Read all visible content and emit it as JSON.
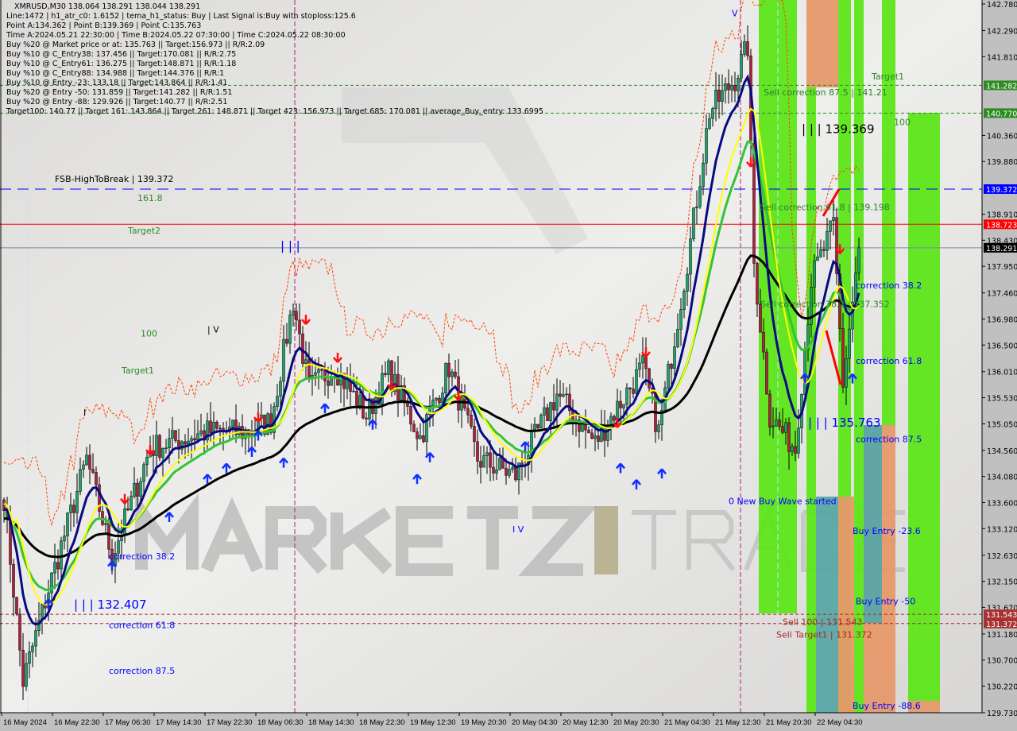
{
  "header": {
    "title": "XMRUSD,M30  138.064 138.291 138.044 138.291",
    "lines": [
      "Line:1472 | h1_atr_c0: 1.6152 | tema_h1_status: Buy | Last Signal is:Buy with stoploss:125.6",
      "Point A:134.362 | Point B:139.369 | Point C:135.763",
      "Time A:2024.05.21 22:30:00 | Time B:2024.05.22 07:30:00 | Time C:2024.05.22 08:30:00",
      "Buy %20 @ Market price or at: 135.763 || Target:156.973 || R/R:2.09",
      "Buy %10 @ C_Entry38: 137.456 || Target:170.081 || R/R:2.75",
      "Buy %10 @ C_Entry61: 136.275 || Target:148.871 || R/R:1.18",
      "Buy %10 @ C_Entry88: 134.988 || Target:144.376 || R/R:1",
      "Buy %10 @ Entry -23: 133.18 || Target:143.864 || R/R:1.41",
      "Buy %20 @ Entry -50: 131.859 || Target:141.282 || R/R:1.51",
      "Buy %20 @ Entry -88: 129.926 || Target:140.77 || R/R:2.51",
      "Target100: 140.77 || Target 161: 143.864 || Target 261: 148.871 || Target 423: 156.973 || Target 685: 170.081 || average_Buy_entry: 133.6995"
    ]
  },
  "watermark": "MARKETZ TRADE",
  "chart_data": {
    "type": "candlestick",
    "symbol": "XMRUSD",
    "timeframe": "M30",
    "ylim": [
      129.73,
      142.78
    ],
    "y_ticks": [
      "142.780",
      "142.290",
      "141.810",
      "140.360",
      "139.880",
      "138.910",
      "138.430",
      "137.950",
      "137.460",
      "136.980",
      "136.500",
      "136.010",
      "135.530",
      "135.050",
      "134.560",
      "134.080",
      "133.600",
      "133.120",
      "132.630",
      "132.150",
      "131.670",
      "131.180",
      "130.700",
      "130.220",
      "129.730"
    ],
    "x_ticks": [
      "16 May 2024",
      "16 May 22:30",
      "17 May 06:30",
      "17 May 14:30",
      "17 May 22:30",
      "18 May 06:30",
      "18 May 14:30",
      "18 May 22:30",
      "19 May 12:30",
      "19 May 20:30",
      "20 May 04:30",
      "20 May 12:30",
      "20 May 20:30",
      "21 May 04:30",
      "21 May 12:30",
      "21 May 20:30",
      "22 May 04:30"
    ],
    "close_path": [
      [
        0,
        133.7
      ],
      [
        6,
        130.3
      ],
      [
        14,
        132.0
      ],
      [
        26,
        134.4
      ],
      [
        34,
        132.6
      ],
      [
        46,
        134.6
      ],
      [
        64,
        134.9
      ],
      [
        76,
        134.9
      ],
      [
        84,
        135.1
      ],
      [
        91,
        137.3
      ],
      [
        96,
        135.7
      ],
      [
        104,
        136.1
      ],
      [
        114,
        135.2
      ],
      [
        121,
        136.0
      ],
      [
        131,
        134.8
      ],
      [
        140,
        136.1
      ],
      [
        149,
        134.4
      ],
      [
        161,
        134.1
      ],
      [
        174,
        135.6
      ],
      [
        186,
        134.7
      ],
      [
        201,
        136.1
      ],
      [
        206,
        134.9
      ],
      [
        216,
        138.4
      ],
      [
        222,
        140.8
      ],
      [
        230,
        141.4
      ],
      [
        234,
        142.0
      ],
      [
        236,
        138.0
      ],
      [
        241,
        135.2
      ],
      [
        249,
        134.6
      ],
      [
        254,
        137.7
      ],
      [
        261,
        138.7
      ],
      [
        264,
        135.8
      ],
      [
        269,
        138.291
      ]
    ],
    "price_lines": [
      {
        "price": 141.282,
        "label": "141.282",
        "color": "#2e8b22",
        "style": "dash"
      },
      {
        "price": 140.77,
        "label": "140.770",
        "color": "#2e8b22",
        "style": "dash"
      },
      {
        "price": 139.372,
        "label": "139.372",
        "color": "#0000ff",
        "style": "longdash"
      },
      {
        "price": 138.723,
        "label": "138.723",
        "color": "#ff0000",
        "style": "solid"
      },
      {
        "price": 138.291,
        "label": "138.291",
        "color": "#000000",
        "style": "solid"
      },
      {
        "price": 131.543,
        "label": "131.543",
        "color": "#a52a2a",
        "style": "dash"
      },
      {
        "price": 131.372,
        "label": "131.372",
        "color": "#a52a2a",
        "style": "dash"
      }
    ],
    "annotations": [
      {
        "text": "FSB-HighToBreak  |  139.372",
        "color": "#000000",
        "bar": 16,
        "price": 139.5
      },
      {
        "text": "161.8",
        "color": "#2e8b22",
        "bar": 42,
        "price": 139.3
      },
      {
        "text": "Target2",
        "color": "#2e8b22",
        "bar": 39,
        "price": 138.55
      },
      {
        "text": "| | |",
        "color": "#0000ff",
        "bar": 87,
        "price": 138.25
      },
      {
        "text": "100",
        "color": "#2e8b22",
        "bar": 43,
        "price": 136.66
      },
      {
        "text": "| V",
        "color": "#000000",
        "bar": 64,
        "price": 136.73
      },
      {
        "text": "Target1",
        "color": "#2e8b22",
        "bar": 37,
        "price": 135.98
      },
      {
        "text": "I",
        "color": "#000000",
        "bar": 25,
        "price": 135.2
      },
      {
        "text": "correction 38.2",
        "color": "#0000ff",
        "bar": 33,
        "price": 132.55
      },
      {
        "text": "| | | 132.407",
        "color": "#0000ff",
        "bar": 22,
        "price": 131.65
      },
      {
        "text": "correction 61.8",
        "color": "#0000ff",
        "bar": 33,
        "price": 131.55
      },
      {
        "text": "correction 87.5",
        "color": "#0000ff",
        "bar": 33,
        "price": 130.45
      },
      {
        "text": "I V",
        "color": "#0000ff",
        "bar": 160,
        "price": 133.05
      },
      {
        "text": "V",
        "color": "#0000ff",
        "bar": 229,
        "price": 142.55
      },
      {
        "text": "Sell correction 87.5 | 141.21",
        "color": "#2e7d2e",
        "bar": 239,
        "price": 141.1
      },
      {
        "text": "Target1",
        "color": "#2e8b22",
        "bar": 273,
        "price": 141.17
      },
      {
        "text": "| | | 139.369",
        "color": "#000000",
        "bar": 251,
        "price": 140.4
      },
      {
        "text": "100",
        "color": "#2e8b22",
        "bar": 280,
        "price": 140.55
      },
      {
        "text": "Sell correction 61.8 | 139.198",
        "color": "#2e7d2e",
        "bar": 238,
        "price": 138.98
      },
      {
        "text": "Sell correction 38.2 | 137.352",
        "color": "#2e7d2e",
        "bar": 238,
        "price": 137.2
      },
      {
        "text": "correction 38.2",
        "color": "#0000ff",
        "bar": 268,
        "price": 137.32
      },
      {
        "text": "correction 61.8",
        "color": "#0000ff",
        "bar": 268,
        "price": 136.15
      },
      {
        "text": "| | | 135.763",
        "color": "#0000ff",
        "bar": 253,
        "price": 135.0
      },
      {
        "text": "correction 87.5",
        "color": "#0000ff",
        "bar": 268,
        "price": 134.93
      },
      {
        "text": "0 New Buy Wave started",
        "color": "#0000ff",
        "bar": 228,
        "price": 133.57
      },
      {
        "text": "Buy Entry -23.6",
        "color": "#0000ff",
        "bar": 267,
        "price": 133.02
      },
      {
        "text": "Buy Entry -50",
        "color": "#0000ff",
        "bar": 268,
        "price": 131.73
      },
      {
        "text": "Sell 100 | 131.543",
        "color": "#a52a2a",
        "bar": 245,
        "price": 131.35
      },
      {
        "text": "Sell Target1 | 131.372",
        "color": "#a52a2a",
        "bar": 243,
        "price": 131.2
      },
      {
        "text": "Buy Entry -88.6",
        "color": "#0000ff",
        "bar": 267,
        "price": 129.8
      }
    ],
    "buy_signals": [
      [
        14,
        131.7
      ],
      [
        34,
        132.4
      ],
      [
        52,
        133.3
      ],
      [
        64,
        134.0
      ],
      [
        70,
        134.2
      ],
      [
        78,
        134.5
      ],
      [
        80,
        134.8
      ],
      [
        88,
        134.3
      ],
      [
        101,
        135.3
      ],
      [
        116,
        135.0
      ],
      [
        130,
        134.0
      ],
      [
        134,
        134.4
      ],
      [
        164,
        134.6
      ],
      [
        194,
        134.2
      ],
      [
        199,
        133.9
      ],
      [
        207,
        134.1
      ],
      [
        252,
        135.85
      ],
      [
        267,
        135.85
      ]
    ],
    "sell_signals": [
      [
        38,
        133.7
      ],
      [
        46,
        134.6
      ],
      [
        80,
        135.2
      ],
      [
        95,
        137.0
      ],
      [
        105,
        136.3
      ],
      [
        122,
        135.8
      ],
      [
        143,
        135.6
      ],
      [
        193,
        135.1
      ],
      [
        202,
        136.4
      ],
      [
        235,
        139.9
      ],
      [
        263,
        138.3
      ]
    ]
  }
}
